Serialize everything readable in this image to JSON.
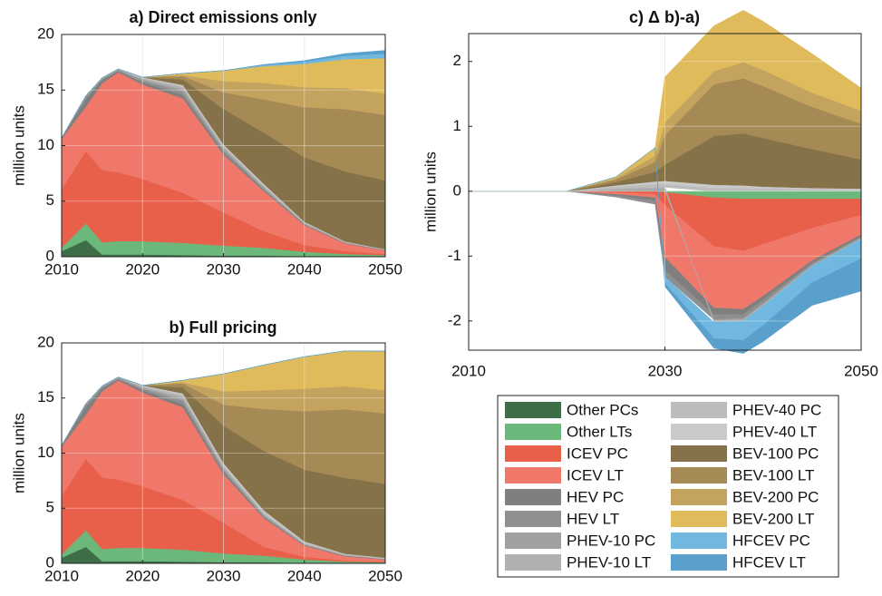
{
  "chart_data": [
    {
      "type": "area",
      "title": "a) Direct emissions only",
      "y_label": "million units",
      "x": [
        2010,
        2013,
        2015,
        2017,
        2020,
        2025,
        2030,
        2035,
        2040,
        2045,
        2050
      ],
      "xlim": [
        2010,
        2050
      ],
      "xticks": [
        2010,
        2020,
        2030,
        2040,
        2050
      ],
      "ylim": [
        0,
        20
      ],
      "yticks": [
        0,
        5,
        10,
        15,
        20
      ],
      "grid": true,
      "series": [
        {
          "values": [
            0.5,
            1.5,
            0.2,
            0.2,
            0.2,
            0.15,
            0.1,
            0.1,
            0.05,
            0.05,
            0.05
          ]
        },
        {
          "values": [
            0.3,
            1.5,
            1.1,
            1.2,
            1.2,
            1.1,
            0.9,
            0.7,
            0.4,
            0.2,
            0.1
          ]
        },
        {
          "values": [
            5.3,
            6.5,
            6.5,
            6.2,
            5.6,
            4.5,
            3,
            1.5,
            0.6,
            0.25,
            0.1
          ]
        },
        {
          "values": [
            4.5,
            4,
            7.8,
            9,
            8.5,
            8.5,
            5.2,
            3.6,
            1.8,
            0.7,
            0.3
          ]
        },
        {
          "values": [
            0.1,
            0.7,
            0.3,
            0.1,
            0.2,
            0.3,
            0.2,
            0.1,
            0.05,
            0.03,
            0.02
          ]
        },
        {
          "values": [
            0,
            0.2,
            0.1,
            0.1,
            0.15,
            0.3,
            0.2,
            0.15,
            0.05,
            0.03,
            0.02
          ]
        },
        {
          "values": [
            0,
            0.05,
            0.05,
            0.05,
            0.1,
            0.2,
            0.15,
            0.1,
            0.05,
            0.03,
            0.02
          ]
        },
        {
          "values": [
            0,
            0.05,
            0.05,
            0.05,
            0.1,
            0.2,
            0.15,
            0.1,
            0.05,
            0.03,
            0.02
          ]
        },
        {
          "values": [
            0,
            0,
            0,
            0,
            0.05,
            0.1,
            0.1,
            0.1,
            0.05,
            0.03,
            0.02
          ]
        },
        {
          "values": [
            0,
            0,
            0,
            0,
            0.05,
            0.1,
            0.1,
            0.1,
            0.05,
            0.03,
            0.02
          ]
        },
        {
          "values": [
            0,
            0,
            0,
            0,
            0,
            0.5,
            3.2,
            4.6,
            5.8,
            6.3,
            6.2
          ]
        },
        {
          "values": [
            0,
            0,
            0,
            0,
            0,
            0.3,
            1.5,
            3,
            4.5,
            5.6,
            5.9
          ]
        },
        {
          "values": [
            0,
            0,
            0,
            0,
            0,
            0.1,
            1,
            1.5,
            1.8,
            1.9,
            1.9
          ]
        },
        {
          "values": [
            0,
            0,
            0,
            0,
            0,
            0.15,
            0.95,
            1.5,
            2.1,
            2.6,
            3.2
          ]
        },
        {
          "values": [
            0,
            0,
            0,
            0,
            0,
            0,
            0,
            0.1,
            0.2,
            0.3,
            0.4
          ]
        },
        {
          "values": [
            0,
            0,
            0,
            0,
            0,
            0,
            0,
            0.05,
            0.1,
            0.2,
            0.3
          ]
        }
      ]
    },
    {
      "type": "area",
      "title": "b) Full pricing",
      "y_label": "million units",
      "x": [
        2010,
        2013,
        2015,
        2017,
        2020,
        2025,
        2030,
        2035,
        2040,
        2045,
        2050
      ],
      "xlim": [
        2010,
        2050
      ],
      "xticks": [
        2010,
        2020,
        2030,
        2040,
        2050
      ],
      "ylim": [
        0,
        20
      ],
      "yticks": [
        0,
        5,
        10,
        15,
        20
      ],
      "grid": true,
      "series": [
        {
          "values": [
            0.5,
            1.5,
            0.2,
            0.2,
            0.2,
            0.15,
            0.1,
            0.1,
            0.05,
            0.05,
            0.05
          ]
        },
        {
          "values": [
            0.3,
            1.5,
            1.1,
            1.2,
            1.2,
            1.1,
            0.8,
            0.6,
            0.3,
            0.1,
            0.05
          ]
        },
        {
          "values": [
            5.3,
            6.5,
            6.5,
            6.2,
            5.6,
            4.5,
            2.8,
            0.8,
            0.25,
            0.1,
            0.05
          ]
        },
        {
          "values": [
            4.5,
            4,
            7.8,
            9,
            8.5,
            8.4,
            4.4,
            2.6,
            1,
            0.4,
            0.2
          ]
        },
        {
          "values": [
            0.1,
            0.7,
            0.3,
            0.1,
            0.2,
            0.3,
            0.2,
            0.1,
            0.05,
            0.03,
            0.02
          ]
        },
        {
          "values": [
            0,
            0.2,
            0.1,
            0.1,
            0.15,
            0.3,
            0.2,
            0.1,
            0.05,
            0.03,
            0.02
          ]
        },
        {
          "values": [
            0,
            0.05,
            0.05,
            0.05,
            0.1,
            0.2,
            0.15,
            0.1,
            0.05,
            0.03,
            0.02
          ]
        },
        {
          "values": [
            0,
            0.05,
            0.05,
            0.05,
            0.1,
            0.2,
            0.15,
            0.1,
            0.05,
            0.03,
            0.02
          ]
        },
        {
          "values": [
            0,
            0,
            0,
            0,
            0.05,
            0.15,
            0.15,
            0.15,
            0.1,
            0.05,
            0.04
          ]
        },
        {
          "values": [
            0,
            0,
            0,
            0,
            0.05,
            0.12,
            0.15,
            0.15,
            0.1,
            0.05,
            0.04
          ]
        },
        {
          "values": [
            0,
            0,
            0,
            0,
            0,
            0.55,
            3.4,
            5.4,
            6.5,
            6.9,
            6.7
          ]
        },
        {
          "values": [
            0,
            0,
            0,
            0,
            0,
            0.35,
            1.9,
            3.8,
            5.3,
            6.2,
            6.4
          ]
        },
        {
          "values": [
            0,
            0,
            0,
            0,
            0,
            0.12,
            1.2,
            1.7,
            2.05,
            2.1,
            2.1
          ]
        },
        {
          "values": [
            0,
            0,
            0,
            0,
            0,
            0.17,
            1.6,
            2.3,
            2.9,
            3.2,
            3.55
          ]
        },
        {
          "values": [
            0,
            0,
            0,
            0,
            0,
            0,
            0,
            0,
            0,
            0,
            0
          ]
        },
        {
          "values": [
            0,
            0,
            0,
            0,
            0,
            0,
            0,
            0,
            0,
            0,
            0
          ]
        }
      ]
    },
    {
      "type": "area",
      "title": "c) Δ b)-a)",
      "y_label": "million units",
      "x": [
        2010,
        2020,
        2025,
        2029,
        2030,
        2035,
        2038,
        2040,
        2045,
        2050
      ],
      "xlim": [
        2010,
        2050
      ],
      "xticks": [
        2010,
        2030,
        2050
      ],
      "ylim": [
        -2.45,
        2.43
      ],
      "yticks": [
        -2,
        -1,
        0,
        1,
        2
      ],
      "grid": true,
      "series": [
        {
          "name": "Other PCs",
          "color": "#3d6e47",
          "values": [
            0,
            0,
            0,
            0,
            0,
            0,
            0,
            0,
            0,
            0
          ]
        },
        {
          "name": "Other LTs",
          "color": "#6bb87a",
          "values": [
            0,
            0,
            0,
            0,
            -0.02,
            -0.1,
            -0.12,
            -0.12,
            -0.12,
            -0.12
          ]
        },
        {
          "name": "ICEV PC",
          "color": "#e8604a",
          "values": [
            0,
            0,
            -0.02,
            -0.05,
            -0.2,
            -0.75,
            -0.8,
            -0.7,
            -0.45,
            -0.25
          ]
        },
        {
          "name": "ICEV LT",
          "color": "#f0786a",
          "values": [
            0,
            0,
            -0.03,
            -0.05,
            -0.8,
            -0.95,
            -0.9,
            -0.8,
            -0.5,
            -0.3
          ]
        },
        {
          "name": "HEV PC",
          "color": "#7f7f7f",
          "values": [
            0,
            0,
            -0.02,
            -0.05,
            -0.2,
            -0.1,
            -0.08,
            -0.06,
            -0.04,
            -0.03
          ]
        },
        {
          "name": "HEV LT",
          "color": "#8f8f8f",
          "values": [
            0,
            0,
            -0.02,
            -0.05,
            -0.1,
            -0.08,
            -0.06,
            -0.05,
            -0.03,
            -0.02
          ]
        },
        {
          "name": "PHEV-10 PC",
          "color": "#a0a0a0",
          "values": [
            0,
            0,
            0.02,
            0.03,
            0.03,
            -0.02,
            -0.02,
            -0.02,
            -0.01,
            -0.01
          ]
        },
        {
          "name": "PHEV-10 LT",
          "color": "#b0b0b0",
          "values": [
            0,
            0,
            0.02,
            0.03,
            0.03,
            -0.02,
            -0.02,
            -0.02,
            -0.01,
            -0.01
          ]
        },
        {
          "name": "PHEV-40 PC",
          "color": "#bcbcbc",
          "values": [
            0,
            0,
            0.03,
            0.05,
            0.05,
            0.05,
            0.05,
            0.04,
            0.03,
            0.02
          ]
        },
        {
          "name": "PHEV-40 LT",
          "color": "#cacaca",
          "values": [
            0,
            0,
            0.02,
            0.04,
            0.05,
            0.05,
            0.04,
            0.03,
            0.02,
            0.02
          ]
        },
        {
          "name": "BEV-100 PC",
          "color": "#857248",
          "values": [
            0,
            0,
            0.05,
            0.15,
            0.25,
            0.75,
            0.8,
            0.75,
            0.6,
            0.45
          ]
        },
        {
          "name": "BEV-100 LT",
          "color": "#a58a55",
          "values": [
            0,
            0,
            0.04,
            0.15,
            0.45,
            0.8,
            0.85,
            0.8,
            0.65,
            0.55
          ]
        },
        {
          "name": "BEV-200 PC",
          "color": "#c4a35f",
          "values": [
            0,
            0,
            0.02,
            0.1,
            0.2,
            0.2,
            0.25,
            0.25,
            0.22,
            0.2
          ]
        },
        {
          "name": "BEV-200 LT",
          "color": "#dfbb5c",
          "values": [
            0,
            0,
            0.02,
            0.12,
            0.7,
            0.7,
            0.8,
            0.75,
            0.6,
            0.35
          ]
        },
        {
          "name": "HFCEV PC",
          "color": "#70b8df",
          "values": [
            0,
            0,
            0,
            0,
            -0.1,
            -0.25,
            -0.3,
            -0.3,
            -0.25,
            -0.3
          ]
        },
        {
          "name": "HFCEV LT",
          "color": "#5aa0cc",
          "values": [
            0,
            0,
            0,
            0,
            -0.05,
            -0.15,
            -0.2,
            -0.25,
            -0.35,
            -0.5
          ]
        }
      ]
    }
  ]
}
